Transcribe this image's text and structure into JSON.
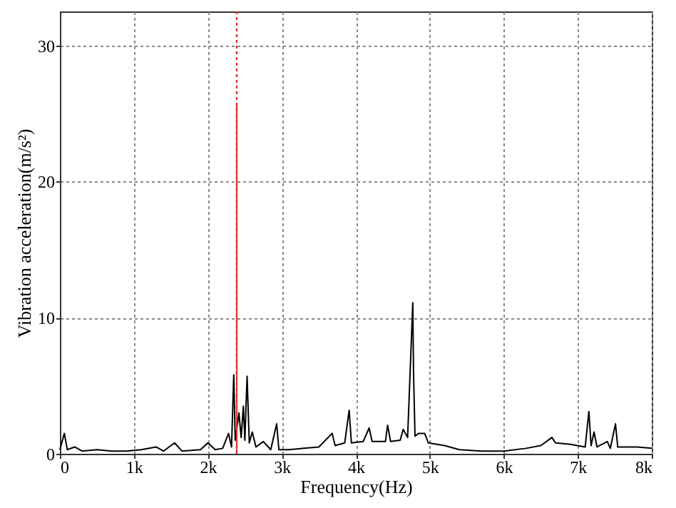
{
  "chart_data": {
    "type": "line",
    "xlabel": "Frequency(Hz)",
    "ylabel": "Vibration acceleration(m/s²)",
    "xlim": [
      0,
      8000
    ],
    "ylim": [
      0,
      32.5
    ],
    "xticks": [
      0,
      {
        "value": 1000,
        "label": "1k"
      },
      {
        "value": 2000,
        "label": "2k"
      },
      {
        "value": 3000,
        "label": "3k"
      },
      {
        "value": 4000,
        "label": "4k"
      },
      {
        "value": 5000,
        "label": "5k"
      },
      {
        "value": 6000,
        "label": "6k"
      },
      {
        "value": 7000,
        "label": "7k"
      },
      {
        "value": 8000,
        "label": "8k"
      }
    ],
    "yticks": [
      0,
      10,
      20,
      30
    ],
    "grid": true,
    "ref_lines": [
      {
        "axis": "x",
        "value": 2390,
        "color": "#e03030",
        "line_style": "dotted"
      }
    ],
    "series": [
      {
        "color": "#000000",
        "x": [
          0,
          60,
          100,
          200,
          300,
          500,
          700,
          900,
          1100,
          1300,
          1400,
          1550,
          1650,
          1900,
          2000,
          2100,
          2200,
          2280,
          2320,
          2350,
          2370,
          2420,
          2450,
          2480,
          2500,
          2530,
          2560,
          2600,
          2650,
          2750,
          2850,
          2930,
          2960,
          3100,
          3300,
          3500,
          3680,
          3720,
          3850,
          3910,
          3940,
          4100,
          4180,
          4220,
          4400,
          4430,
          4470,
          4600,
          4640,
          4700,
          4770,
          4780,
          4800,
          4850,
          4930,
          4980,
          5200,
          5400,
          5700,
          6000,
          6300,
          6500,
          6650,
          6700,
          6900,
          7100,
          7150,
          7180,
          7220,
          7260,
          7400,
          7440,
          7510,
          7540,
          7800,
          8000
        ],
        "values": [
          0.3,
          1.5,
          0.3,
          0.5,
          0.2,
          0.3,
          0.2,
          0.2,
          0.3,
          0.5,
          0.2,
          0.8,
          0.2,
          0.3,
          0.8,
          0.3,
          0.4,
          1.5,
          0.5,
          5.8,
          1.0,
          3.0,
          1.2,
          3.5,
          1.0,
          5.7,
          0.8,
          1.6,
          0.5,
          0.9,
          0.3,
          2.2,
          0.3,
          0.3,
          0.4,
          0.5,
          1.5,
          0.6,
          0.8,
          3.2,
          0.8,
          0.9,
          1.9,
          0.9,
          0.9,
          2.1,
          0.9,
          1.0,
          1.8,
          1.2,
          11.1,
          6.0,
          1.3,
          1.5,
          1.5,
          0.8,
          0.6,
          0.3,
          0.2,
          0.2,
          0.4,
          0.6,
          1.2,
          0.8,
          0.7,
          0.5,
          3.1,
          0.6,
          1.6,
          0.5,
          0.9,
          0.4,
          2.2,
          0.5,
          0.5,
          0.4
        ]
      },
      {
        "color": "#e03030",
        "x": [
          2390,
          2390
        ],
        "values": [
          0,
          25.6
        ]
      }
    ]
  }
}
